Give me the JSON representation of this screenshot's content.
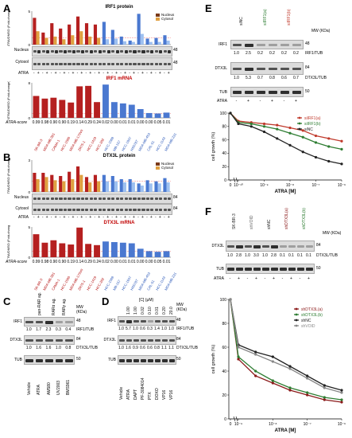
{
  "panelA": {
    "letter": "A",
    "title_protein": "IRF1 protein",
    "title_mrna": "IRF1 mRNA",
    "ylabel_protein": "ATRA/DMSO (Fold-change)",
    "ylabel_mrna": "ATRA/DMSO (Fold-change)",
    "legend": [
      "Nucleus",
      "Cytosol"
    ],
    "rows": [
      "Nucleus",
      "Cytosol"
    ],
    "mw": [
      "48",
      "48"
    ],
    "atra_label": "ATRA",
    "score_label": "ATRA-score",
    "scores": [
      "0.99",
      "0.98",
      "0.90",
      "0.90",
      "0.19",
      "0.14",
      "0.29",
      "0.24",
      "0.02",
      "0.00",
      "0.01",
      "0.01",
      "0.00",
      "0.00",
      "0.05",
      "0.01"
    ]
  },
  "panelB": {
    "letter": "B",
    "title_protein": "DTX3L protein",
    "title_mrna": "DTX3L mRNA",
    "ylabel_protein": "ATRA/DMSO (Fold-change)",
    "ylabel_mrna": "ATRA/DMSO (Fold-change)",
    "legend": [
      "Nucleus",
      "Cytosol"
    ],
    "rows": [
      "Nucleus",
      "Cytosol"
    ],
    "mw": [
      "84",
      "84"
    ],
    "atra_label": "ATRA",
    "score_label": "ATRA-score",
    "scores": [
      "0.99",
      "0.98",
      "0.90",
      "0.90",
      "0.19",
      "0.14",
      "0.29",
      "0.24",
      "0.02",
      "0.00",
      "0.01",
      "0.01",
      "0.00",
      "0.00",
      "0.05",
      "0.01"
    ]
  },
  "cell_lines": [
    {
      "name": "SK-BR-3",
      "group": "red"
    },
    {
      "name": "MDA-MB-361",
      "group": "red"
    },
    {
      "name": "CAMA-1",
      "group": "red"
    },
    {
      "name": "HCC-1500",
      "group": "red"
    },
    {
      "name": "MDA-MB-175VII",
      "group": "red"
    },
    {
      "name": "ZR75-1",
      "group": "red"
    },
    {
      "name": "HCC-1419",
      "group": "red"
    },
    {
      "name": "HCC-202",
      "group": "red"
    },
    {
      "name": "HCC-1569",
      "group": "blue"
    },
    {
      "name": "MB-157",
      "group": "blue"
    },
    {
      "name": "HCC-1937",
      "group": "blue"
    },
    {
      "name": "HS578T",
      "group": "blue"
    },
    {
      "name": "MDA-MB-453",
      "group": "blue"
    },
    {
      "name": "CAL-51",
      "group": "blue"
    },
    {
      "name": "HCC-1143",
      "group": "blue"
    },
    {
      "name": "MDA-MB-231",
      "group": "blue"
    }
  ],
  "panelC": {
    "letter": "C",
    "col_headers": [
      "pan-RAR ag.",
      "RARα ag.",
      "RARγ ag."
    ],
    "lanes": [
      "Vehicle",
      "ATRA",
      "AM580",
      "UV2003",
      "BMS961"
    ],
    "rows": [
      "IRF1",
      "DTX3L",
      "TUB"
    ],
    "irf1_ratio_label": "IRF1/TUB",
    "irf1_ratios": [
      "1.0",
      "1.7",
      "2.3",
      "0.3",
      "0.4"
    ],
    "dtx3l_ratio_label": "DTX3L/TUB",
    "dtx3l_ratios": [
      "1.0",
      "1.6",
      "1.6",
      "1.0",
      "0.8"
    ],
    "mw_header": "MW (KDa)",
    "mw": [
      "48",
      "84",
      "50"
    ]
  },
  "panelD": {
    "letter": "D",
    "conc_header": "[C] (μM)",
    "concs": [
      "1.00",
      "1.00",
      "0.02",
      "0.10",
      "0.01",
      "0.20",
      "20.0"
    ],
    "lanes": [
      "Vehicle",
      "ATRA",
      "DAPT",
      "PF-3084014",
      "PTX",
      "DOXO",
      "VP16",
      "VP16"
    ],
    "rows": [
      "IRF1",
      "DTX3L",
      "TUB"
    ],
    "irf1_ratio_label": "IRF1/TUB",
    "irf1_ratios": [
      "1.0",
      "5.7",
      "1.0",
      "0.6",
      "0.3",
      "1.4",
      "1.0",
      "1.0"
    ],
    "dtx3l_ratio_label": "DTX3L/TUB",
    "dtx3l_ratios": [
      "1.0",
      "1.6",
      "0.9",
      "0.6",
      "0.6",
      "0.8",
      "1.1",
      "1.1"
    ],
    "mw_header": "MW (KDa)",
    "mw": [
      "48",
      "84",
      "50"
    ]
  },
  "panelE": {
    "letter": "E",
    "lane_groups": [
      "siNC",
      "siIRF1(a)",
      "siIRF1(b)"
    ],
    "rows": [
      "IRF1",
      "DTX3L",
      "TUB"
    ],
    "irf1_ratio_label": "IRF1/TUB",
    "irf1_ratios": [
      "1.0",
      "2.5",
      "0.2",
      "0.2",
      "0.2",
      "0.2"
    ],
    "dtx3l_ratio_label": "DTX3L/TUB",
    "dtx3l_ratios": [
      "1.0",
      "5.3",
      "0.7",
      "0.8",
      "0.6",
      "0.7"
    ],
    "atra_label": "ATRA",
    "atra_signs": [
      "-",
      "+",
      "-",
      "+",
      "-",
      "+"
    ],
    "mw_header": "MW (KDa)",
    "mw": [
      "48",
      "84",
      "50"
    ]
  },
  "panelF": {
    "letter": "F",
    "lane_groups": [
      "SK-BR-3",
      "shVOID",
      "shNC",
      "shDTX3L(a)",
      "shDTX3L(b)"
    ],
    "rows": [
      "DTX3L",
      "TUB"
    ],
    "dtx3l_ratio_label": "DTX3L/TUB",
    "dtx3l_ratios": [
      "1.0",
      "2.8",
      "1.0",
      "3.0",
      "1.0",
      "2.8",
      "0.1",
      "0.1",
      "0.1",
      "0.1"
    ],
    "atra_label": "ATRA",
    "atra_signs": [
      "-",
      "+",
      "-",
      "+",
      "-",
      "+",
      "-",
      "+",
      "-",
      "+"
    ],
    "mw_header": "MW (KDa)",
    "mw": [
      "84",
      "50"
    ]
  },
  "chart_data": [
    {
      "panel": "A-protein",
      "type": "bar",
      "title": "IRF1 protein",
      "ylabel": "ATRA/DMSO (Fold-change)",
      "ylim": [
        0,
        5
      ],
      "series": [
        {
          "name": "Nucleus",
          "values": [
            4.0,
            1.8,
            3.2,
            2.4,
            3.0,
            4.2,
            3.2,
            3.0,
            3.4,
            2.2,
            1.2,
            0.6,
            4.6,
            0.9,
            1.0,
            1.4
          ]
        },
        {
          "name": "Cytosol",
          "values": [
            2.0,
            1.0,
            1.2,
            0.8,
            1.4,
            2.0,
            1.2,
            1.0,
            0.8,
            0.9,
            0.5,
            0.4,
            1.6,
            0.4,
            0.4,
            0.6
          ]
        }
      ]
    },
    {
      "panel": "A-mrna",
      "type": "bar",
      "title": "IRF1 mRNA",
      "ylabel": "ATRA/DMSO (Fold-change)",
      "ylim": [
        0,
        8
      ],
      "values": [
        5.0,
        4.4,
        4.6,
        4.1,
        3.5,
        7.2,
        7.3,
        3.6,
        7.6,
        3.6,
        3.3,
        3.0,
        2.0,
        1.1,
        1.0,
        1.2
      ]
    },
    {
      "panel": "B-protein",
      "type": "bar",
      "title": "DTX3L protein",
      "ylabel": "ATRA/DMSO (Fold-change)",
      "ylim": [
        0,
        3
      ],
      "series": [
        {
          "name": "Nucleus",
          "values": [
            1.8,
            1.8,
            1.6,
            1.5,
            1.9,
            2.4,
            1.4,
            1.6,
            1.6,
            1.5,
            1.2,
            1.2,
            0.8,
            1.1,
            1.0,
            1.3
          ]
        },
        {
          "name": "Cytosol",
          "values": [
            1.2,
            1.4,
            1.1,
            1.0,
            1.2,
            1.6,
            0.9,
            1.0,
            1.0,
            1.0,
            0.9,
            0.9,
            0.6,
            0.8,
            0.8,
            0.9
          ]
        }
      ]
    },
    {
      "panel": "B-mrna",
      "type": "bar",
      "title": "DTX3L mRNA",
      "ylabel": "ATRA/DMSO (Fold-change)",
      "ylim": [
        0,
        5
      ],
      "values": [
        3.8,
        2.4,
        2.8,
        2.3,
        2.1,
        4.9,
        2.2,
        2.0,
        2.6,
        2.5,
        2.4,
        2.3,
        1.4,
        1.0,
        0.9,
        1.0
      ]
    },
    {
      "panel": "E-growth",
      "type": "line",
      "xlabel": "ATRA [M]",
      "ylabel": "cell growth (%)",
      "ylim": [
        0,
        100
      ],
      "x_ticks": [
        "0",
        "10⁻¹⁰",
        "10⁻⁹",
        "10⁻⁸",
        "10⁻⁷",
        "10⁻⁶"
      ],
      "x": [
        0,
        -10,
        -9.5,
        -9,
        -8.5,
        -8,
        -7.5,
        -7,
        -6.5,
        -6
      ],
      "series": [
        {
          "name": "siIRF1(a)",
          "values": [
            100,
            88,
            86,
            84,
            82,
            78,
            74,
            66,
            62,
            58
          ]
        },
        {
          "name": "siIRF1(b)",
          "values": [
            100,
            86,
            84,
            80,
            76,
            70,
            64,
            56,
            50,
            46
          ]
        },
        {
          "name": "siNC",
          "values": [
            100,
            84,
            80,
            72,
            62,
            52,
            42,
            34,
            28,
            24
          ]
        }
      ]
    },
    {
      "panel": "F-growth",
      "type": "line",
      "xlabel": "ATRA [M]",
      "ylabel": "cell growth (%)",
      "ylim": [
        0,
        100
      ],
      "x_ticks": [
        "0",
        "10⁻⁹",
        "10⁻⁸",
        "10⁻⁷",
        "10⁻⁶"
      ],
      "x": [
        0,
        -9,
        -8.5,
        -8,
        -7.5,
        -7,
        -6.5,
        -6
      ],
      "series": [
        {
          "name": "shDTX3L(a)",
          "values": [
            100,
            50,
            36,
            30,
            24,
            20,
            16,
            14
          ]
        },
        {
          "name": "shDTX3L(b)",
          "values": [
            100,
            52,
            40,
            32,
            26,
            22,
            18,
            16
          ]
        },
        {
          "name": "shNC",
          "values": [
            100,
            62,
            56,
            52,
            44,
            36,
            28,
            24
          ]
        },
        {
          "name": "shVOID",
          "values": [
            100,
            60,
            54,
            48,
            42,
            34,
            26,
            22
          ]
        }
      ]
    }
  ],
  "colors": {
    "nucleus_red": "#b52020",
    "cytosol_orange": "#e0a040",
    "nucleus_blue": "#4a78d0",
    "mrna_red": "#b52020",
    "mrna_blue": "#4a78d0",
    "line_red": "#c0392b",
    "line_green": "#2e7d32",
    "line_black": "#222222",
    "line_dark_red": "#8b1a1a",
    "line_gray": "#888888"
  }
}
